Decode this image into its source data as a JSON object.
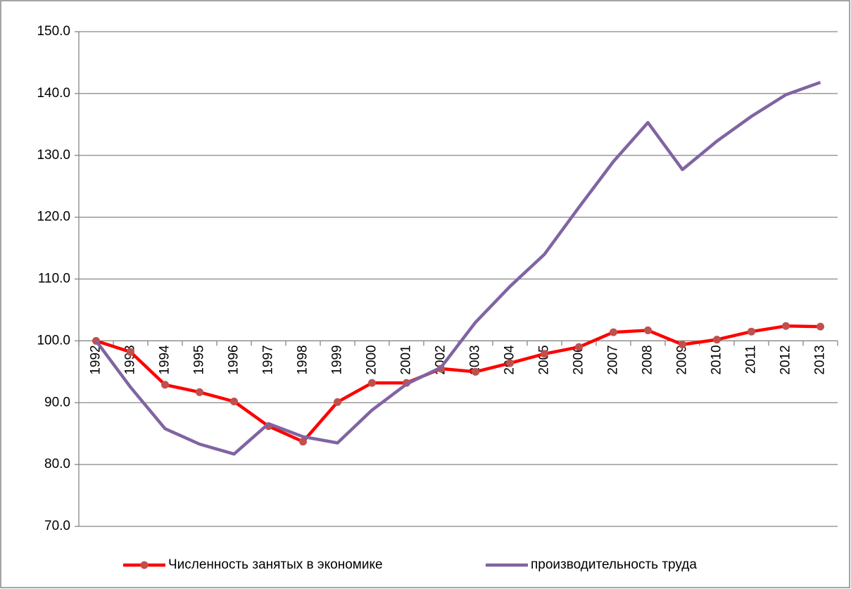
{
  "chart_data": {
    "type": "line",
    "categories": [
      "1992",
      "1993",
      "1994",
      "1995",
      "1996",
      "1997",
      "1998",
      "1999",
      "2000",
      "2001",
      "2002",
      "2003",
      "2004",
      "2005",
      "2006",
      "2007",
      "2008",
      "2009",
      "2010",
      "2011",
      "2012",
      "2013"
    ],
    "series": [
      {
        "name": "Численность занятых в экономике",
        "color": "#ff0000",
        "marker_color": "#c0504d",
        "values": [
          100,
          98.2,
          92.9,
          91.7,
          90.2,
          86.2,
          83.7,
          90.1,
          93.2,
          93.2,
          95.5,
          95.0,
          96.4,
          97.9,
          99.0,
          101.4,
          101.7,
          99.4,
          100.2,
          101.5,
          102.4,
          102.3
        ]
      },
      {
        "name": "производительность труда",
        "color": "#8064a2",
        "values": [
          100,
          92.5,
          85.8,
          83.3,
          81.7,
          86.6,
          84.5,
          83.5,
          88.8,
          93.0,
          95.7,
          103.0,
          108.8,
          114.0,
          121.6,
          129.0,
          135.3,
          127.7,
          132.3,
          136.3,
          139.8,
          141.8
        ]
      }
    ],
    "ylim": [
      70,
      150
    ],
    "yticks": [
      {
        "value": 70,
        "label": "70.0"
      },
      {
        "value": 80,
        "label": "80.0"
      },
      {
        "value": 90,
        "label": "90.0"
      },
      {
        "value": 100,
        "label": "100.0"
      },
      {
        "value": 110,
        "label": "110.0"
      },
      {
        "value": 120,
        "label": "120.0"
      },
      {
        "value": 130,
        "label": "130.0"
      },
      {
        "value": 140,
        "label": "140.0"
      },
      {
        "value": 150,
        "label": "150.0"
      }
    ],
    "x_axis_crosses": 100,
    "grid": true
  }
}
